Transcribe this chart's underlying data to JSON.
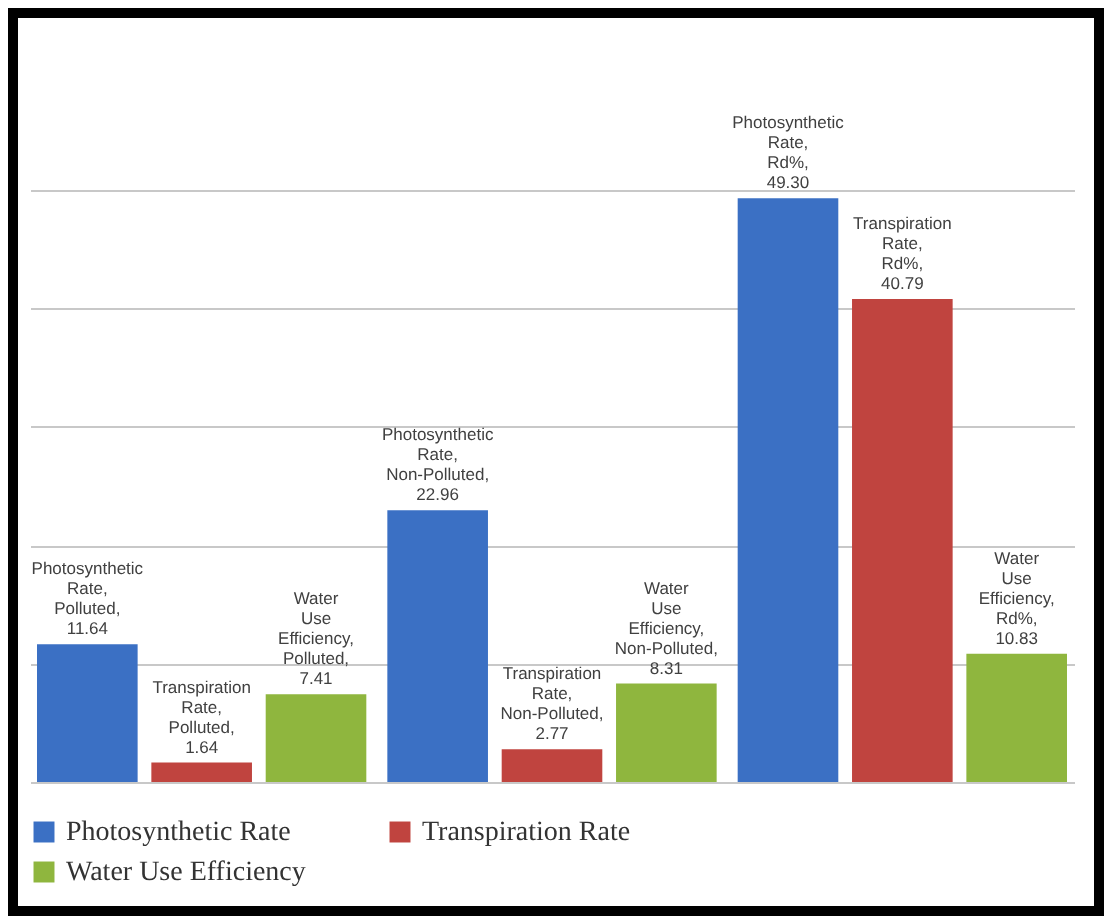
{
  "chart_data": {
    "type": "bar",
    "categories": [
      null,
      null,
      null
    ],
    "series": [
      {
        "name": "Photosynthetic Rate",
        "color": "#3b70c4",
        "values": [
          11.64,
          22.96,
          49.3
        ],
        "value_labels": [
          "Photosynthetic Rate, Polluted, 11.64",
          "Photosynthetic Rate, Non-Polluted, 22.96",
          "Photosynthetic Rate, Rd%, 49.30"
        ]
      },
      {
        "name": "Transpiration Rate",
        "color": "#c0443f",
        "values": [
          1.64,
          2.77,
          40.79
        ],
        "value_labels": [
          "Transpiration Rate, Polluted, 1.64",
          "Transpiration Rate, Non-Polluted, 2.77",
          "Transpiration Rate, Rd%, 40.79"
        ]
      },
      {
        "name": "Water Use Efficiency",
        "color": "#8fb63e",
        "values": [
          7.41,
          8.31,
          10.83
        ],
        "value_labels": [
          "Water Use Efficiency, Polluted, 7.41",
          "Water Use Efficiency, Non-Polluted, 8.31",
          "Water Use Efficiency, Rd%, 10.83"
        ]
      }
    ],
    "ylim": [
      0,
      50
    ],
    "yticks": [
      {
        "value": 0,
        "label": null
      },
      {
        "value": 10,
        "label": null
      },
      {
        "value": 20,
        "label": null
      },
      {
        "value": 30,
        "label": null
      },
      {
        "value": 40,
        "label": null
      },
      {
        "value": 50,
        "label": null
      }
    ],
    "tick_labels": false,
    "grid": "y",
    "legend": "bottom"
  }
}
